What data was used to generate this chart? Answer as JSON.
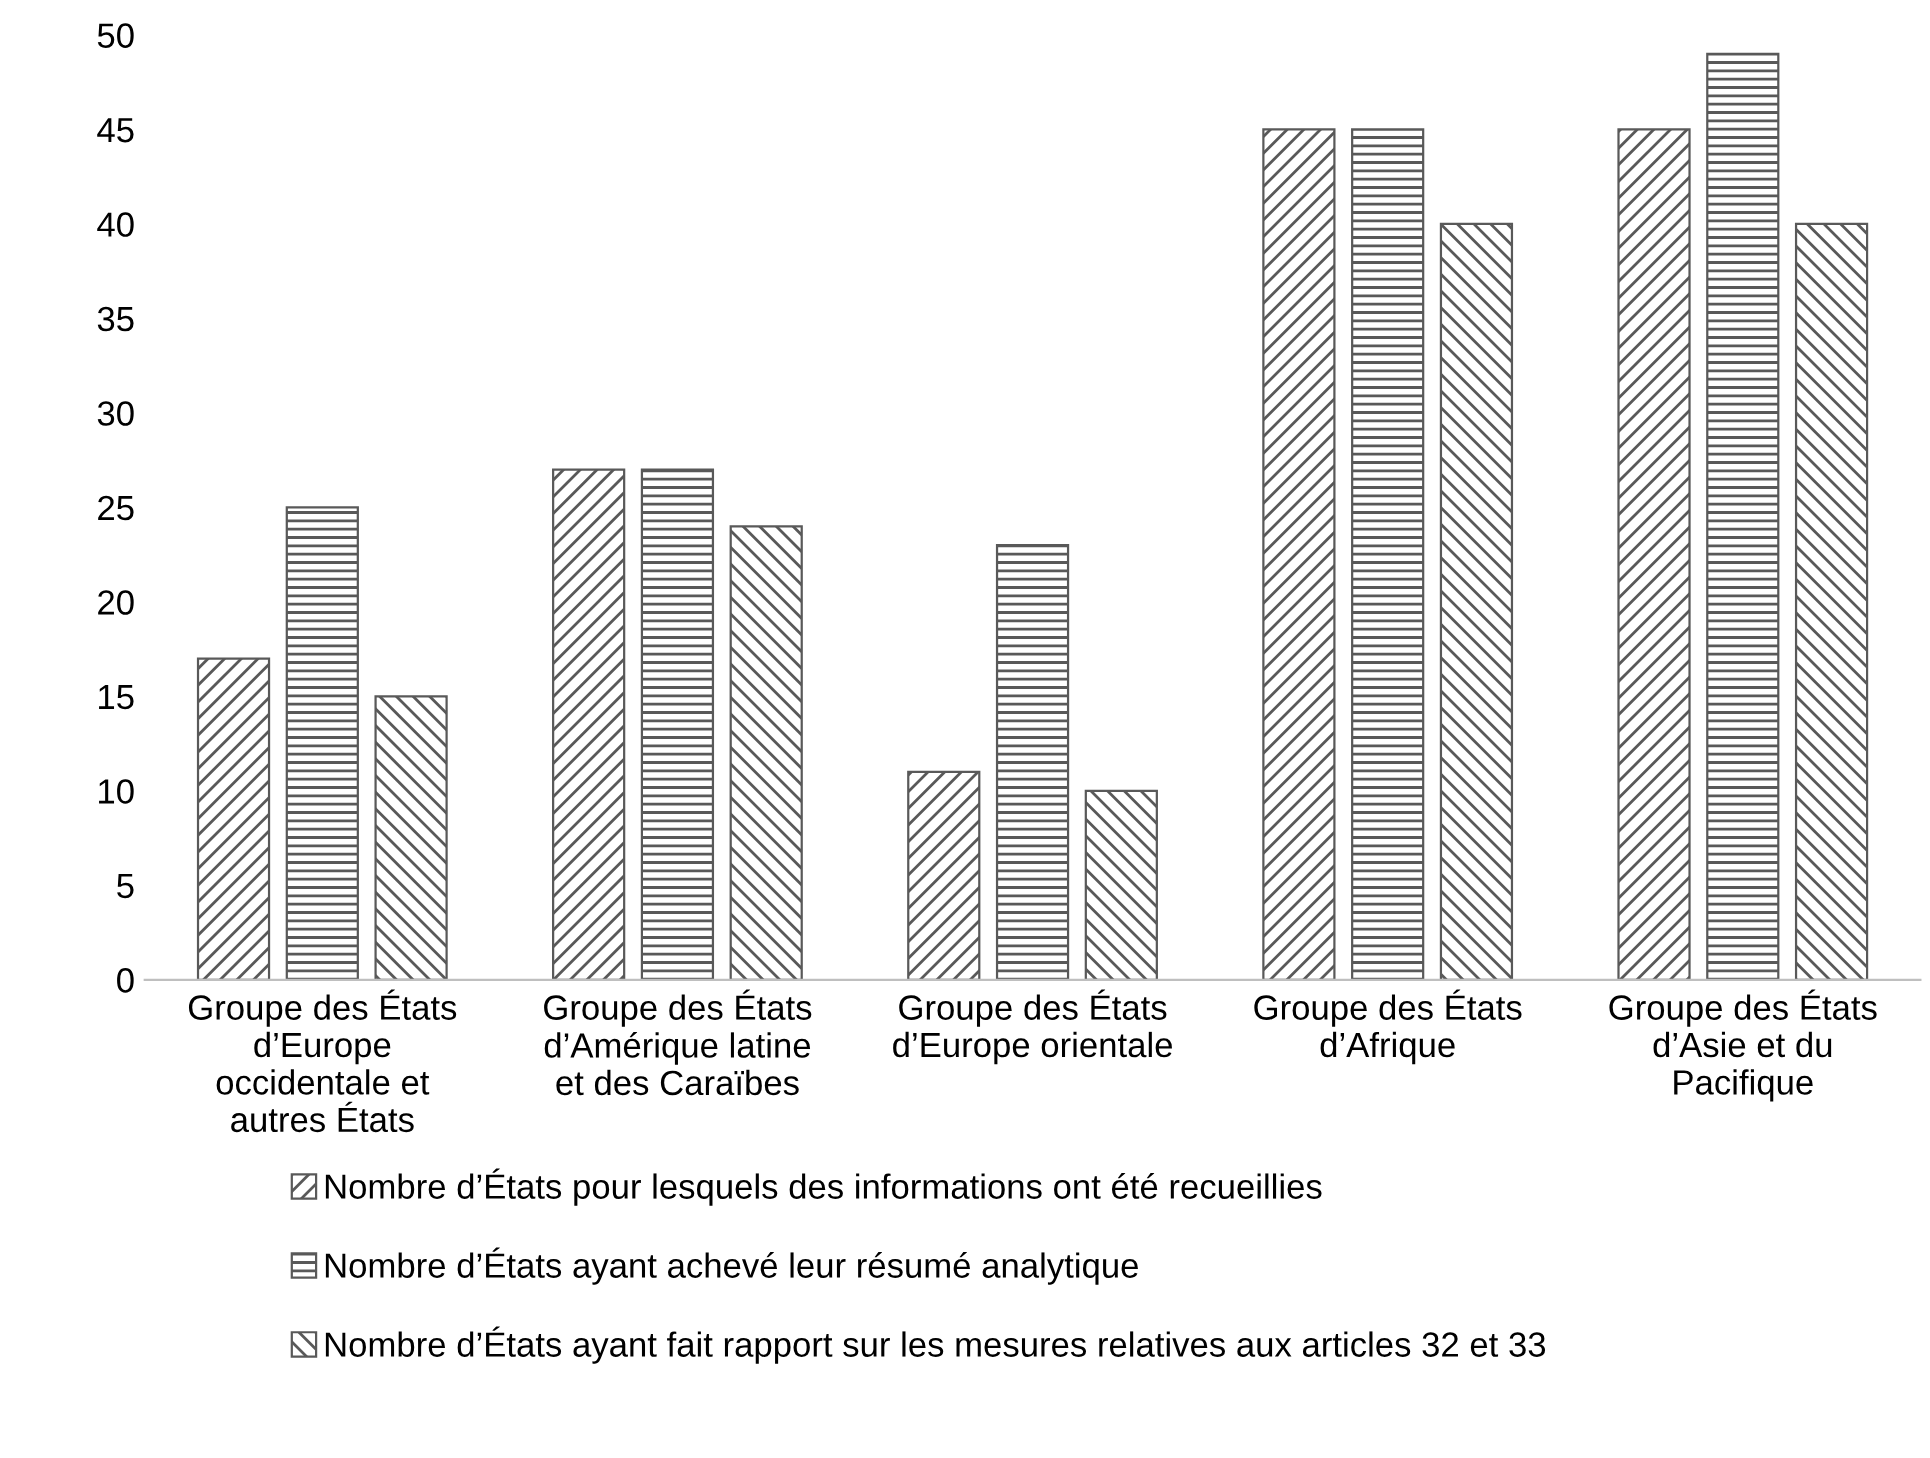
{
  "chart_data": {
    "type": "bar",
    "categories": [
      "Groupe des États\nd’Europe\noccidentale et\nautres États",
      "Groupe des États\nd’Amérique latine\net des Caraïbes",
      "Groupe des États\nd’Europe orientale",
      "Groupe des États\nd’Afrique",
      "Groupe des États\nd’Asie et du\nPacifique"
    ],
    "series": [
      {
        "name": "Nombre d’États pour lesquels des informations ont été recueillies",
        "color": "#595959",
        "values": [
          17,
          27,
          11,
          45,
          45
        ]
      },
      {
        "name": "Nombre d’États ayant achevé leur résumé analytique",
        "color": "#595959",
        "values": [
          25,
          27,
          23,
          45,
          49
        ]
      },
      {
        "name": "Nombre d’États ayant fait rapport sur les mesures relatives aux articles 32 et 33",
        "color": "#595959",
        "values": [
          15,
          24,
          10,
          40,
          40
        ]
      }
    ],
    "ylim": [
      0,
      50
    ],
    "yticks": [
      0,
      5,
      10,
      15,
      20,
      25,
      30,
      35,
      40,
      45,
      50
    ],
    "grid": false,
    "legend": "bottom"
  }
}
